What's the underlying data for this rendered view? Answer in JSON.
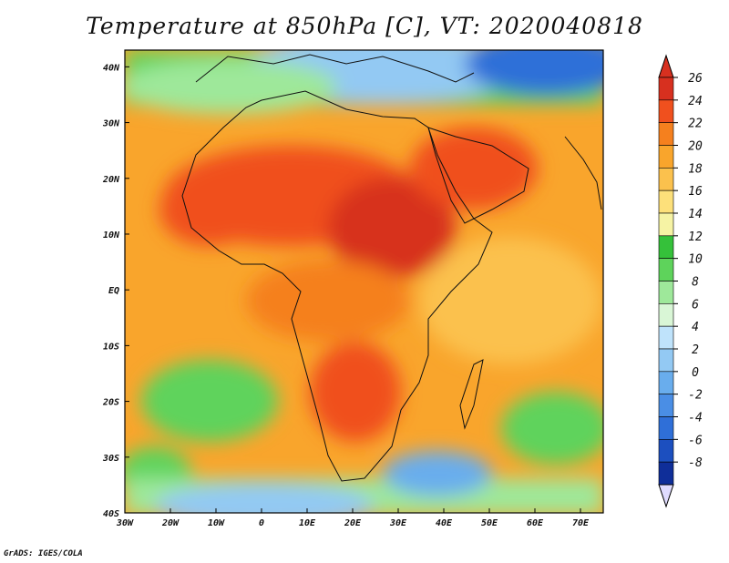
{
  "title": "Temperature at 850hPa [C], VT: 2020040818",
  "credit": "GrADS: IGES/COLA",
  "map": {
    "lon_range": [
      -30,
      75
    ],
    "lat_range": [
      -40,
      43
    ],
    "lon_ticks": [
      {
        "value": -30,
        "label": "30W"
      },
      {
        "value": -20,
        "label": "20W"
      },
      {
        "value": -10,
        "label": "10W"
      },
      {
        "value": 0,
        "label": "0"
      },
      {
        "value": 10,
        "label": "10E"
      },
      {
        "value": 20,
        "label": "20E"
      },
      {
        "value": 30,
        "label": "30E"
      },
      {
        "value": 40,
        "label": "40E"
      },
      {
        "value": 50,
        "label": "50E"
      },
      {
        "value": 60,
        "label": "60E"
      },
      {
        "value": 70,
        "label": "70E"
      }
    ],
    "lat_ticks": [
      {
        "value": 40,
        "label": "40N"
      },
      {
        "value": 30,
        "label": "30N"
      },
      {
        "value": 20,
        "label": "20N"
      },
      {
        "value": 10,
        "label": "10N"
      },
      {
        "value": 0,
        "label": "EQ"
      },
      {
        "value": -10,
        "label": "10S"
      },
      {
        "value": -20,
        "label": "20S"
      },
      {
        "value": -30,
        "label": "30S"
      },
      {
        "value": -40,
        "label": "40S"
      }
    ]
  },
  "colorbar": {
    "levels": [
      {
        "label": "26",
        "color": "#d7301f"
      },
      {
        "label": "24",
        "color": "#f0501e"
      },
      {
        "label": "22",
        "color": "#f5801e"
      },
      {
        "label": "20",
        "color": "#f9a52c"
      },
      {
        "label": "18",
        "color": "#fbc14d"
      },
      {
        "label": "16",
        "color": "#fde07a"
      },
      {
        "label": "14",
        "color": "#f6f3a4"
      },
      {
        "label": "12",
        "color": "#35c13a"
      },
      {
        "label": "10",
        "color": "#5ed35b"
      },
      {
        "label": "8",
        "color": "#9ee89a"
      },
      {
        "label": "6",
        "color": "#d9f6d6"
      },
      {
        "label": "4",
        "color": "#bfe3fb"
      },
      {
        "label": "2",
        "color": "#93c9f3"
      },
      {
        "label": "0",
        "color": "#69aded"
      },
      {
        "label": "-2",
        "color": "#4a8ee5"
      },
      {
        "label": "-4",
        "color": "#2f6fd8"
      },
      {
        "label": "-6",
        "color": "#1c4fbf"
      },
      {
        "label": "-8",
        "color": "#0f2e99"
      }
    ],
    "above_color": "#d7301f",
    "below_color": "#e0dcff"
  }
}
